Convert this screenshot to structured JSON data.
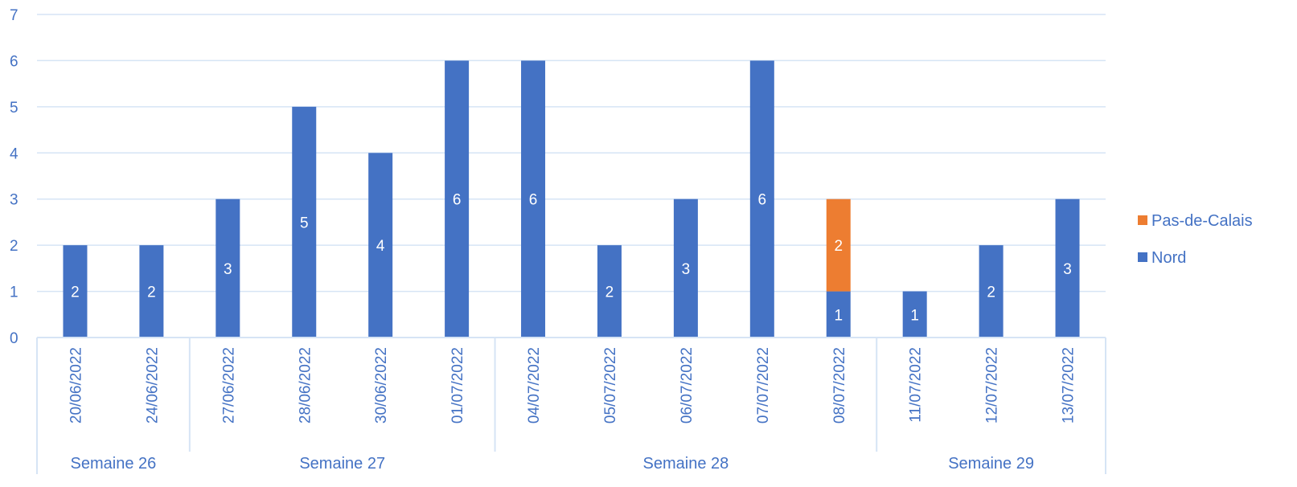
{
  "colors": {
    "nord": "#4472c4",
    "pas_de_calais": "#ed7d31",
    "grid": "#d6e4f5",
    "axis_text": "#4472c4",
    "label_text": "#ffffff"
  },
  "chart_data": {
    "type": "bar",
    "stacked": true,
    "categories": [
      "20/06/2022",
      "24/06/2022",
      "27/06/2022",
      "28/06/2022",
      "30/06/2022",
      "01/07/2022",
      "04/07/2022",
      "05/07/2022",
      "06/07/2022",
      "07/07/2022",
      "08/07/2022",
      "11/07/2022",
      "12/07/2022",
      "13/07/2022"
    ],
    "groups": [
      {
        "label": "Semaine 26",
        "count": 2
      },
      {
        "label": "Semaine 27",
        "count": 4
      },
      {
        "label": "Semaine 28",
        "count": 5
      },
      {
        "label": "Semaine 29",
        "count": 3
      }
    ],
    "series": [
      {
        "name": "Nord",
        "values": [
          2,
          2,
          3,
          5,
          4,
          6,
          6,
          2,
          3,
          6,
          1,
          1,
          2,
          3
        ]
      },
      {
        "name": "Pas-de-Calais",
        "values": [
          0,
          0,
          0,
          0,
          0,
          0,
          0,
          0,
          0,
          0,
          2,
          0,
          0,
          0
        ]
      }
    ],
    "ylim": [
      0,
      7
    ],
    "yticks": [
      "0",
      "1",
      "2",
      "3",
      "4",
      "5",
      "6",
      "7"
    ],
    "legend": {
      "position": "right",
      "entries": [
        "Pas-de-Calais",
        "Nord"
      ]
    },
    "grid": true,
    "data_labels": true
  }
}
